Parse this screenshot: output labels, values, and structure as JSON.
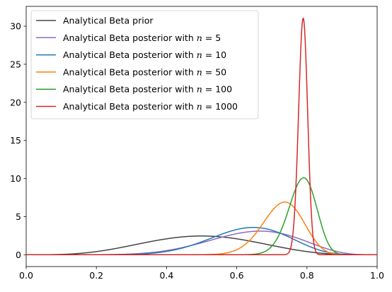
{
  "chart_data": {
    "type": "line",
    "title": "",
    "xlabel": "",
    "ylabel": "",
    "xlim": [
      0.0,
      1.0
    ],
    "ylim": [
      -1.55,
      32.6
    ],
    "xticks": [
      0.0,
      0.2,
      0.4,
      0.6,
      0.8,
      1.0
    ],
    "xtick_labels": [
      "0.0",
      "0.2",
      "0.4",
      "0.6",
      "0.8",
      "1.0"
    ],
    "yticks": [
      0,
      5,
      10,
      15,
      20,
      25,
      30
    ],
    "ytick_labels": [
      "0",
      "5",
      "10",
      "15",
      "20",
      "25",
      "30"
    ],
    "grid": false,
    "legend_position": "upper-left",
    "series": [
      {
        "name": "Analytical Beta prior",
        "legend_prefix": "Analytical Beta prior",
        "legend_n": "",
        "color": "#444444",
        "alpha": 5,
        "beta": 5
      },
      {
        "name": "Analytical Beta posterior with n = 5",
        "legend_prefix": "Analytical Beta posterior with ",
        "legend_n": "5",
        "color": "#9467bd",
        "alpha": 9,
        "beta": 5
      },
      {
        "name": "Analytical Beta posterior with n = 10",
        "legend_prefix": "Analytical Beta posterior with ",
        "legend_n": "10",
        "color": "#1f77b4",
        "alpha": 12,
        "beta": 7
      },
      {
        "name": "Analytical Beta posterior with n = 50",
        "legend_prefix": "Analytical Beta posterior with ",
        "legend_n": "50",
        "color": "#ff7f0e",
        "alpha": 43,
        "beta": 16
      },
      {
        "name": "Analytical Beta posterior with n = 100",
        "legend_prefix": "Analytical Beta posterior with ",
        "legend_n": "100",
        "color": "#2ca02c",
        "alpha": 84,
        "beta": 23
      },
      {
        "name": "Analytical Beta posterior with n = 1000",
        "legend_prefix": "Analytical Beta posterior with ",
        "legend_n": "1000",
        "color": "#d62728",
        "alpha": 795,
        "beta": 213
      }
    ]
  }
}
